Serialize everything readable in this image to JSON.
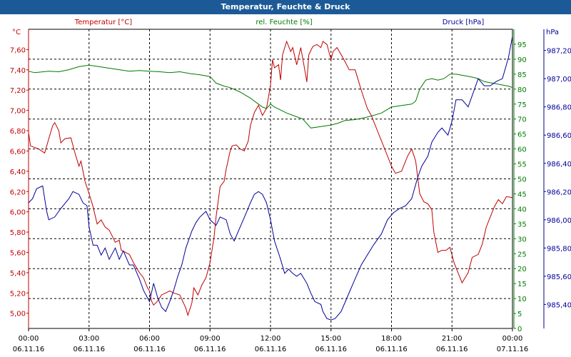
{
  "window": {
    "title": "Temperatur, Feuchte & Druck"
  },
  "colors": {
    "temperature": "#c00000",
    "humidity": "#007a00",
    "pressure": "#00009a",
    "titlebar": "#1c5a97",
    "grid": "#000000"
  },
  "chart_data": {
    "type": "line",
    "title": "Temperatur, Feuchte & Druck",
    "grid": true,
    "x": {
      "range_hours": [
        0,
        24
      ],
      "tick_hours": [
        0,
        3,
        6,
        9,
        12,
        15,
        18,
        21,
        24
      ],
      "tick_labels": [
        "00:00",
        "03:00",
        "06:00",
        "09:00",
        "12:00",
        "15:00",
        "18:00",
        "21:00",
        "00:00"
      ],
      "date_labels": [
        "06.11.16",
        "06.11.16",
        "06.11.16",
        "06.11.16",
        "06.11.16",
        "06.11.16",
        "06.11.16",
        "06.11.16",
        "07.11.16"
      ]
    },
    "axes": {
      "temperature": {
        "label": "Temperatur [°C]",
        "unit": "°C",
        "range": [
          4.85,
          7.8
        ],
        "ticks": [
          "5,00",
          "5,20",
          "5,40",
          "5,60",
          "5,80",
          "6,00",
          "6,20",
          "6,40",
          "6,60",
          "6,80",
          "7,00",
          "7,20",
          "7,40",
          "7,60"
        ],
        "tick_start": 5.0,
        "tick_step": 0.2
      },
      "humidity": {
        "label": "rel. Feuchte [%]",
        "unit": "%",
        "range": [
          0,
          100
        ],
        "ticks": [
          "0",
          "5",
          "10",
          "15",
          "20",
          "25",
          "30",
          "35",
          "40",
          "45",
          "50",
          "55",
          "60",
          "65",
          "70",
          "75",
          "80",
          "85",
          "90",
          "95"
        ],
        "tick_start": 0,
        "tick_step": 5
      },
      "pressure": {
        "label": "Druck [hPa]",
        "unit": "hPa",
        "range": [
          985.23,
          987.35
        ],
        "ticks": [
          "985,40",
          "985,60",
          "985,80",
          "986,00",
          "986,20",
          "986,40",
          "986,60",
          "986,80",
          "987,00",
          "987,20"
        ],
        "tick_start": 985.4,
        "tick_step": 0.2
      }
    },
    "series": [
      {
        "name": "Temperatur [°C]",
        "axis": "temperature",
        "points": [
          [
            0,
            6.78
          ],
          [
            0.1,
            6.65
          ],
          [
            0.5,
            6.62
          ],
          [
            0.8,
            6.58
          ],
          [
            1.0,
            6.72
          ],
          [
            1.2,
            6.85
          ],
          [
            1.3,
            6.88
          ],
          [
            1.5,
            6.8
          ],
          [
            1.6,
            6.68
          ],
          [
            1.8,
            6.72
          ],
          [
            2.1,
            6.73
          ],
          [
            2.3,
            6.58
          ],
          [
            2.5,
            6.45
          ],
          [
            2.6,
            6.5
          ],
          [
            2.8,
            6.3
          ],
          [
            3.0,
            6.18
          ],
          [
            3.2,
            6.05
          ],
          [
            3.4,
            5.88
          ],
          [
            3.6,
            5.92
          ],
          [
            3.8,
            5.85
          ],
          [
            4.0,
            5.82
          ],
          [
            4.3,
            5.7
          ],
          [
            4.5,
            5.72
          ],
          [
            4.6,
            5.62
          ],
          [
            5.0,
            5.58
          ],
          [
            5.2,
            5.5
          ],
          [
            5.5,
            5.4
          ],
          [
            5.7,
            5.35
          ],
          [
            5.9,
            5.25
          ],
          [
            6.0,
            5.22
          ],
          [
            6.1,
            5.12
          ],
          [
            6.2,
            5.08
          ],
          [
            6.4,
            5.12
          ],
          [
            6.6,
            5.18
          ],
          [
            6.8,
            5.2
          ],
          [
            7.0,
            5.22
          ],
          [
            7.2,
            5.2
          ],
          [
            7.5,
            5.18
          ],
          [
            7.8,
            5.05
          ],
          [
            7.9,
            4.98
          ],
          [
            8.1,
            5.1
          ],
          [
            8.2,
            5.25
          ],
          [
            8.4,
            5.18
          ],
          [
            8.6,
            5.28
          ],
          [
            8.8,
            5.35
          ],
          [
            9.0,
            5.5
          ],
          [
            9.2,
            5.75
          ],
          [
            9.3,
            5.95
          ],
          [
            9.4,
            6.1
          ],
          [
            9.5,
            6.25
          ],
          [
            9.7,
            6.3
          ],
          [
            9.8,
            6.42
          ],
          [
            10.0,
            6.6
          ],
          [
            10.1,
            6.65
          ],
          [
            10.3,
            6.66
          ],
          [
            10.5,
            6.62
          ],
          [
            10.7,
            6.6
          ],
          [
            10.9,
            6.7
          ],
          [
            11.0,
            6.85
          ],
          [
            11.2,
            6.98
          ],
          [
            11.4,
            7.05
          ],
          [
            11.6,
            6.95
          ],
          [
            11.8,
            7.02
          ],
          [
            12.0,
            7.25
          ],
          [
            12.1,
            7.5
          ],
          [
            12.2,
            7.42
          ],
          [
            12.4,
            7.45
          ],
          [
            12.5,
            7.3
          ],
          [
            12.6,
            7.55
          ],
          [
            12.8,
            7.68
          ],
          [
            13.0,
            7.58
          ],
          [
            13.1,
            7.62
          ],
          [
            13.3,
            7.45
          ],
          [
            13.5,
            7.62
          ],
          [
            13.7,
            7.4
          ],
          [
            13.8,
            7.28
          ],
          [
            13.9,
            7.55
          ],
          [
            14.1,
            7.63
          ],
          [
            14.3,
            7.65
          ],
          [
            14.5,
            7.62
          ],
          [
            14.6,
            7.68
          ],
          [
            14.8,
            7.65
          ],
          [
            15.0,
            7.5
          ],
          [
            15.1,
            7.58
          ],
          [
            15.3,
            7.62
          ],
          [
            15.5,
            7.55
          ],
          [
            15.7,
            7.48
          ],
          [
            15.9,
            7.4
          ],
          [
            16.2,
            7.4
          ],
          [
            16.5,
            7.2
          ],
          [
            16.8,
            7.02
          ],
          [
            17.0,
            6.95
          ],
          [
            17.3,
            6.8
          ],
          [
            17.5,
            6.7
          ],
          [
            17.8,
            6.55
          ],
          [
            18.0,
            6.45
          ],
          [
            18.2,
            6.38
          ],
          [
            18.5,
            6.4
          ],
          [
            18.8,
            6.55
          ],
          [
            19.0,
            6.62
          ],
          [
            19.2,
            6.5
          ],
          [
            19.4,
            6.18
          ],
          [
            19.6,
            6.1
          ],
          [
            19.8,
            6.08
          ],
          [
            20.0,
            6.02
          ],
          [
            20.1,
            5.8
          ],
          [
            20.3,
            5.6
          ],
          [
            20.5,
            5.62
          ],
          [
            20.7,
            5.62
          ],
          [
            20.9,
            5.65
          ],
          [
            21.1,
            5.5
          ],
          [
            21.3,
            5.4
          ],
          [
            21.5,
            5.3
          ],
          [
            21.8,
            5.4
          ],
          [
            22.0,
            5.55
          ],
          [
            22.3,
            5.58
          ],
          [
            22.5,
            5.68
          ],
          [
            22.7,
            5.85
          ],
          [
            22.9,
            5.95
          ],
          [
            23.1,
            6.05
          ],
          [
            23.3,
            6.12
          ],
          [
            23.5,
            6.08
          ],
          [
            23.7,
            6.15
          ],
          [
            24.0,
            6.14
          ]
        ]
      },
      {
        "name": "rel. Feuchte [%]",
        "axis": "humidity",
        "points": [
          [
            0,
            86
          ],
          [
            0.3,
            85.5
          ],
          [
            1.0,
            86
          ],
          [
            1.5,
            85.8
          ],
          [
            2.0,
            86.5
          ],
          [
            2.5,
            87.5
          ],
          [
            3.0,
            88
          ],
          [
            3.5,
            87.5
          ],
          [
            4.0,
            87
          ],
          [
            4.5,
            86.5
          ],
          [
            5.0,
            86
          ],
          [
            5.5,
            86.2
          ],
          [
            6.0,
            86
          ],
          [
            6.5,
            85.8
          ],
          [
            7.0,
            85.5
          ],
          [
            7.5,
            85.8
          ],
          [
            8.0,
            85.2
          ],
          [
            8.5,
            84.8
          ],
          [
            9.0,
            84.2
          ],
          [
            9.3,
            82
          ],
          [
            9.7,
            81
          ],
          [
            10.0,
            80.5
          ],
          [
            10.5,
            79
          ],
          [
            11.0,
            77
          ],
          [
            11.3,
            75.5
          ],
          [
            11.6,
            74
          ],
          [
            11.8,
            73.5
          ],
          [
            12.0,
            75
          ],
          [
            12.2,
            74
          ],
          [
            12.5,
            73
          ],
          [
            12.8,
            72
          ],
          [
            13.2,
            71
          ],
          [
            13.6,
            70
          ],
          [
            14.0,
            67
          ],
          [
            14.5,
            67.5
          ],
          [
            15.0,
            68
          ],
          [
            15.3,
            68.5
          ],
          [
            15.7,
            69.5
          ],
          [
            16.2,
            69.8
          ],
          [
            16.7,
            70.5
          ],
          [
            17.0,
            71
          ],
          [
            17.5,
            72
          ],
          [
            18.0,
            74
          ],
          [
            18.5,
            74.5
          ],
          [
            19.0,
            75
          ],
          [
            19.2,
            76
          ],
          [
            19.4,
            80
          ],
          [
            19.7,
            83
          ],
          [
            20.0,
            83.5
          ],
          [
            20.3,
            83
          ],
          [
            20.6,
            83.5
          ],
          [
            20.9,
            85
          ],
          [
            21.2,
            85
          ],
          [
            21.6,
            84.5
          ],
          [
            22.0,
            84
          ],
          [
            22.3,
            83.5
          ],
          [
            22.6,
            82.5
          ],
          [
            23.0,
            82
          ],
          [
            23.4,
            81.5
          ],
          [
            23.8,
            81
          ],
          [
            24.0,
            80.5
          ]
        ]
      },
      {
        "name": "Druck [hPa]",
        "axis": "pressure",
        "points": [
          [
            0,
            986.12
          ],
          [
            0.2,
            986.15
          ],
          [
            0.4,
            986.22
          ],
          [
            0.7,
            986.24
          ],
          [
            0.8,
            986.15
          ],
          [
            0.9,
            986.06
          ],
          [
            1.0,
            986.0
          ],
          [
            1.3,
            986.02
          ],
          [
            1.6,
            986.08
          ],
          [
            2.0,
            986.15
          ],
          [
            2.2,
            986.2
          ],
          [
            2.5,
            986.18
          ],
          [
            2.7,
            986.12
          ],
          [
            2.9,
            986.1
          ],
          [
            3.0,
            985.95
          ],
          [
            3.2,
            985.82
          ],
          [
            3.4,
            985.82
          ],
          [
            3.6,
            985.75
          ],
          [
            3.8,
            985.8
          ],
          [
            4.0,
            985.72
          ],
          [
            4.3,
            985.8
          ],
          [
            4.5,
            985.72
          ],
          [
            4.7,
            985.78
          ],
          [
            5.0,
            985.68
          ],
          [
            5.2,
            985.68
          ],
          [
            5.5,
            985.58
          ],
          [
            5.7,
            985.5
          ],
          [
            6.0,
            985.42
          ],
          [
            6.2,
            985.55
          ],
          [
            6.4,
            985.45
          ],
          [
            6.6,
            985.38
          ],
          [
            6.8,
            985.35
          ],
          [
            7.0,
            985.42
          ],
          [
            7.2,
            985.5
          ],
          [
            7.4,
            985.6
          ],
          [
            7.6,
            985.68
          ],
          [
            7.8,
            985.8
          ],
          [
            8.1,
            985.92
          ],
          [
            8.3,
            985.98
          ],
          [
            8.5,
            986.02
          ],
          [
            8.8,
            986.06
          ],
          [
            9.0,
            986.0
          ],
          [
            9.3,
            985.96
          ],
          [
            9.5,
            986.02
          ],
          [
            9.8,
            986.0
          ],
          [
            10.0,
            985.9
          ],
          [
            10.2,
            985.85
          ],
          [
            10.5,
            985.95
          ],
          [
            10.8,
            986.05
          ],
          [
            11.0,
            986.12
          ],
          [
            11.2,
            986.18
          ],
          [
            11.4,
            986.2
          ],
          [
            11.6,
            986.18
          ],
          [
            11.8,
            986.12
          ],
          [
            12.0,
            986.0
          ],
          [
            12.2,
            985.85
          ],
          [
            12.5,
            985.72
          ],
          [
            12.7,
            985.62
          ],
          [
            12.9,
            985.65
          ],
          [
            13.1,
            985.62
          ],
          [
            13.3,
            985.6
          ],
          [
            13.5,
            985.62
          ],
          [
            13.8,
            985.55
          ],
          [
            14.0,
            985.48
          ],
          [
            14.2,
            985.42
          ],
          [
            14.5,
            985.4
          ],
          [
            14.6,
            985.35
          ],
          [
            14.8,
            985.3
          ],
          [
            15.0,
            985.29
          ],
          [
            15.2,
            985.3
          ],
          [
            15.5,
            985.35
          ],
          [
            15.8,
            985.45
          ],
          [
            16.1,
            985.55
          ],
          [
            16.5,
            985.68
          ],
          [
            16.8,
            985.75
          ],
          [
            17.1,
            985.82
          ],
          [
            17.5,
            985.9
          ],
          [
            17.8,
            986.0
          ],
          [
            18.1,
            986.05
          ],
          [
            18.4,
            986.08
          ],
          [
            18.7,
            986.1
          ],
          [
            19.0,
            986.15
          ],
          [
            19.3,
            986.3
          ],
          [
            19.5,
            986.38
          ],
          [
            19.8,
            986.45
          ],
          [
            20.0,
            986.55
          ],
          [
            20.3,
            986.62
          ],
          [
            20.5,
            986.65
          ],
          [
            20.8,
            986.6
          ],
          [
            21.0,
            986.7
          ],
          [
            21.2,
            986.85
          ],
          [
            21.5,
            986.85
          ],
          [
            21.8,
            986.8
          ],
          [
            22.0,
            986.88
          ],
          [
            22.3,
            987.0
          ],
          [
            22.6,
            986.95
          ],
          [
            22.9,
            986.95
          ],
          [
            23.2,
            986.98
          ],
          [
            23.5,
            987.0
          ],
          [
            23.8,
            987.15
          ],
          [
            24.0,
            987.3
          ]
        ]
      }
    ]
  }
}
